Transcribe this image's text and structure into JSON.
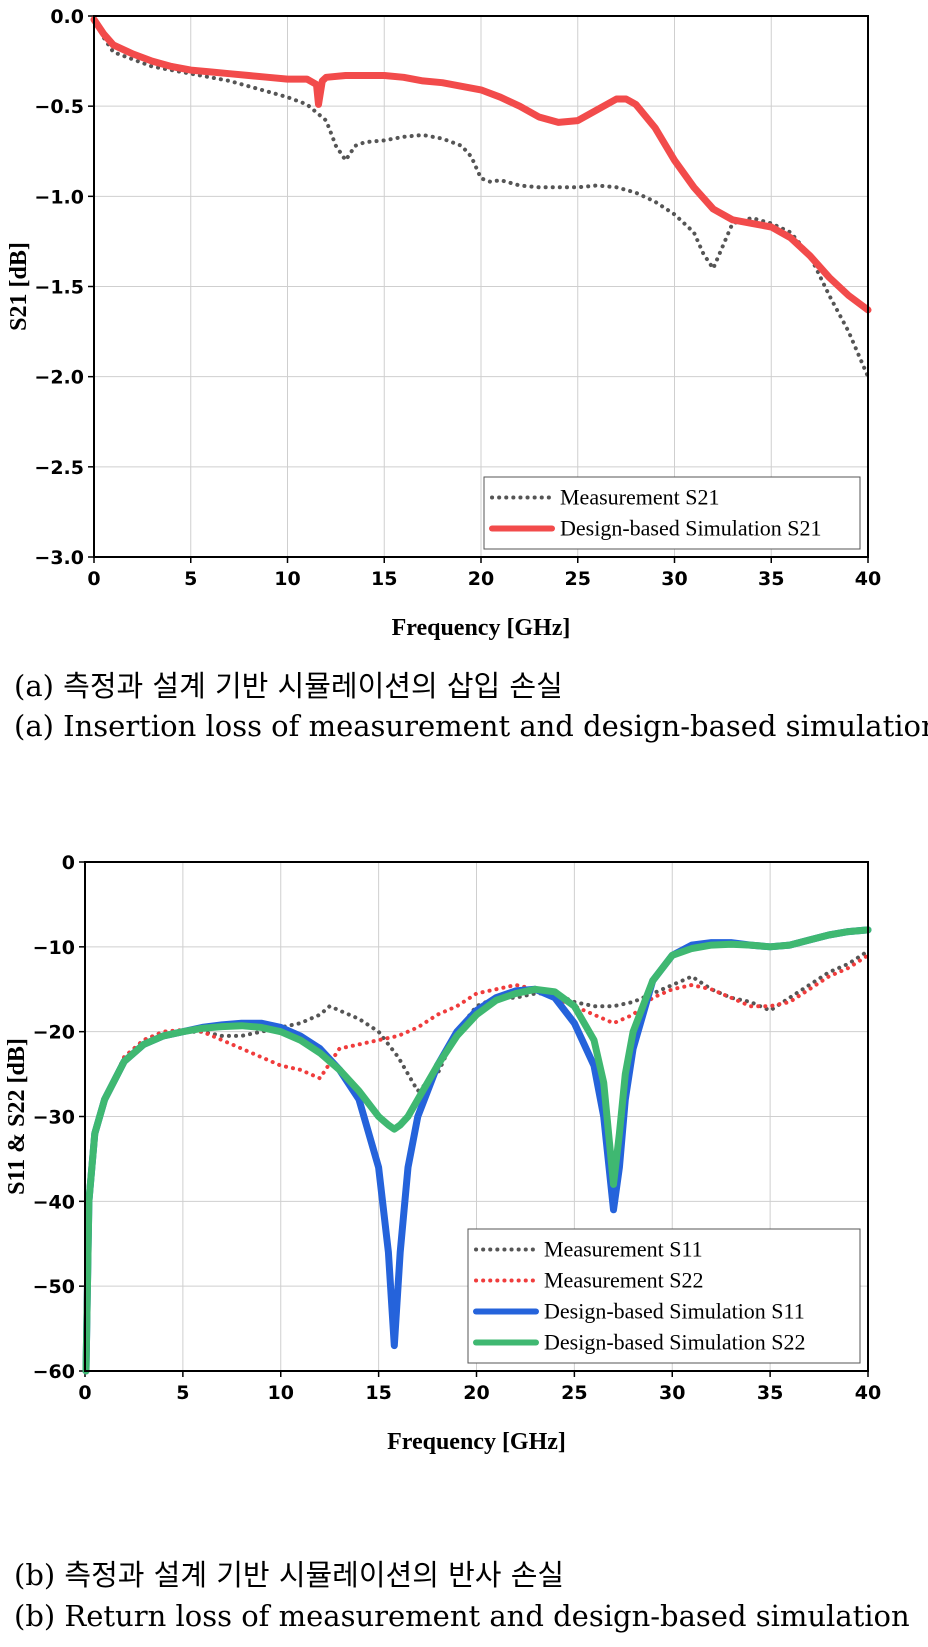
{
  "figure_a": {
    "caption_ko": "(a) 측정과 설계 기반 시뮬레이션의 삽입 손실",
    "caption_en": "(a) Insertion loss of measurement and design-based simulation"
  },
  "figure_b": {
    "caption_ko": "(b) 측정과 설계 기반 시뮬레이션의 반사 손실",
    "caption_en": "(b) Return loss of measurement and design-based simulation"
  },
  "chart_data": [
    {
      "type": "line",
      "xlabel": "Frequency [GHz]",
      "ylabel": "S21 [dB]",
      "xlim": [
        0,
        40
      ],
      "ylim": [
        -3.0,
        0.0
      ],
      "xticks": [
        0,
        5,
        10,
        15,
        20,
        25,
        30,
        35,
        40
      ],
      "yticks": [
        "0.0",
        "-0.5",
        "-1.0",
        "-1.5",
        "-2.0",
        "-2.5",
        "-3.0"
      ],
      "grid": true,
      "legend_position": "bottom-right",
      "series": [
        {
          "name": "Measurement S21",
          "style": "dotted",
          "color": "#555555",
          "x": [
            0,
            0.5,
            1,
            2,
            3,
            4,
            5,
            6,
            7,
            8,
            9,
            10,
            11,
            12,
            12.5,
            13,
            13.5,
            14,
            15,
            16,
            17,
            18,
            19,
            19.5,
            20,
            20.5,
            21,
            22,
            23,
            24,
            25,
            26,
            27,
            28,
            29,
            30,
            31,
            31.5,
            32,
            33,
            34,
            35,
            36,
            37,
            38,
            39,
            40
          ],
          "y": [
            -0.02,
            -0.12,
            -0.2,
            -0.24,
            -0.28,
            -0.3,
            -0.32,
            -0.34,
            -0.36,
            -0.39,
            -0.42,
            -0.45,
            -0.49,
            -0.58,
            -0.72,
            -0.8,
            -0.72,
            -0.7,
            -0.69,
            -0.67,
            -0.66,
            -0.68,
            -0.72,
            -0.78,
            -0.9,
            -0.92,
            -0.91,
            -0.94,
            -0.95,
            -0.95,
            -0.95,
            -0.94,
            -0.95,
            -0.98,
            -1.03,
            -1.1,
            -1.2,
            -1.32,
            -1.4,
            -1.15,
            -1.12,
            -1.15,
            -1.2,
            -1.33,
            -1.55,
            -1.75,
            -2.0
          ]
        },
        {
          "name": "Design-based Simulation S21",
          "style": "solid",
          "color": "#f24b4b",
          "x": [
            0,
            0.5,
            1,
            2,
            3,
            4,
            5,
            6,
            7,
            8,
            9,
            10,
            11,
            11.5,
            11.6,
            11.8,
            12,
            13,
            14,
            15,
            16,
            17,
            18,
            19,
            20,
            21,
            22,
            23,
            24,
            25,
            26,
            27,
            27.5,
            28,
            29,
            30,
            31,
            32,
            33,
            34,
            35,
            36,
            37,
            38,
            39,
            40
          ],
          "y": [
            -0.02,
            -0.1,
            -0.16,
            -0.21,
            -0.25,
            -0.28,
            -0.3,
            -0.31,
            -0.32,
            -0.33,
            -0.34,
            -0.35,
            -0.35,
            -0.38,
            -0.49,
            -0.36,
            -0.34,
            -0.33,
            -0.33,
            -0.33,
            -0.34,
            -0.36,
            -0.37,
            -0.39,
            -0.41,
            -0.45,
            -0.5,
            -0.56,
            -0.59,
            -0.58,
            -0.52,
            -0.46,
            -0.46,
            -0.49,
            -0.62,
            -0.8,
            -0.95,
            -1.07,
            -1.13,
            -1.15,
            -1.17,
            -1.23,
            -1.33,
            -1.45,
            -1.55,
            -1.63
          ]
        }
      ]
    },
    {
      "type": "line",
      "xlabel": "Frequency [GHz]",
      "ylabel": "S11 & S22 [dB]",
      "xlim": [
        0,
        40
      ],
      "ylim": [
        -60,
        0
      ],
      "xticks": [
        0,
        5,
        10,
        15,
        20,
        25,
        30,
        35,
        40
      ],
      "yticks": [
        "0",
        "-10",
        "-20",
        "-30",
        "-40",
        "-50",
        "-60"
      ],
      "grid": true,
      "legend_position": "bottom-right",
      "series": [
        {
          "name": "Measurement S11",
          "style": "dotted",
          "color": "#555555",
          "x": [
            0.05,
            0.2,
            0.5,
            1,
            2,
            3,
            4,
            5,
            6,
            7,
            8,
            9,
            10,
            11,
            12,
            12.5,
            13,
            14,
            15,
            16,
            17,
            18,
            19,
            20,
            21,
            22,
            23,
            24,
            25,
            26,
            27,
            28,
            29,
            30,
            31,
            32,
            33,
            34,
            35,
            36,
            37,
            38,
            39,
            40
          ],
          "y": [
            -60,
            -40,
            -32,
            -28,
            -23,
            -21,
            -20,
            -20,
            -20,
            -20.5,
            -20.5,
            -20,
            -19.5,
            -19,
            -18,
            -17,
            -17.5,
            -18.5,
            -20,
            -23,
            -27,
            -25,
            -20,
            -17,
            -16,
            -16,
            -15.5,
            -15.5,
            -16.5,
            -17,
            -17,
            -16.5,
            -15.5,
            -14.5,
            -13.5,
            -15,
            -16,
            -16.5,
            -17.5,
            -16,
            -14.5,
            -13,
            -12,
            -10.5
          ]
        },
        {
          "name": "Measurement S22",
          "style": "dotted",
          "color": "#f03c3c",
          "x": [
            0.05,
            0.2,
            0.5,
            1,
            2,
            3,
            4,
            5,
            6,
            7,
            8,
            9,
            10,
            11,
            12,
            13,
            14,
            15,
            16,
            17,
            18,
            19,
            20,
            21,
            22,
            23,
            24,
            25,
            26,
            27,
            28,
            29,
            30,
            31,
            32,
            33,
            34,
            35,
            36,
            37,
            38,
            39,
            40
          ],
          "y": [
            -60,
            -40,
            -32,
            -28,
            -23,
            -21,
            -20,
            -19.8,
            -20,
            -21,
            -22,
            -23,
            -24,
            -24.5,
            -25.5,
            -22,
            -21.5,
            -21,
            -20.5,
            -19.5,
            -18,
            -17,
            -15.5,
            -15,
            -14.5,
            -15,
            -16,
            -17,
            -18,
            -19,
            -18,
            -16,
            -15,
            -14.5,
            -15,
            -16,
            -17,
            -17,
            -16.5,
            -15,
            -13.5,
            -12.5,
            -11
          ]
        },
        {
          "name": "Design-based Simulation S11",
          "style": "solid",
          "color": "#2563db",
          "x": [
            0.05,
            0.2,
            0.5,
            1,
            2,
            3,
            4,
            5,
            6,
            7,
            8,
            9,
            10,
            11,
            12,
            13,
            14,
            15,
            15.5,
            15.8,
            16.1,
            16.5,
            17,
            18,
            19,
            20,
            21,
            22,
            23,
            24,
            25,
            26,
            26.5,
            27,
            27.3,
            27.6,
            28,
            29,
            30,
            31,
            32,
            33,
            34,
            35,
            36,
            37,
            38,
            39,
            40
          ],
          "y": [
            -60,
            -40,
            -32,
            -28,
            -23.5,
            -21.5,
            -20.5,
            -20,
            -19.5,
            -19.2,
            -19,
            -19,
            -19.5,
            -20.5,
            -22,
            -24.5,
            -28,
            -36,
            -46,
            -57,
            -46,
            -36,
            -30,
            -24,
            -20,
            -17.5,
            -16,
            -15.2,
            -15,
            -16,
            -19,
            -24,
            -30,
            -41,
            -36,
            -28,
            -22,
            -14,
            -11,
            -9.8,
            -9.5,
            -9.5,
            -9.8,
            -10,
            -9.8,
            -9.2,
            -8.6,
            -8.2,
            -8
          ]
        },
        {
          "name": "Design-based Simulation S22",
          "style": "solid",
          "color": "#3fb871",
          "x": [
            0.05,
            0.2,
            0.5,
            1,
            2,
            3,
            4,
            5,
            6,
            7,
            8,
            9,
            10,
            11,
            12,
            13,
            14,
            15,
            15.5,
            15.8,
            16.1,
            16.5,
            17,
            18,
            19,
            20,
            21,
            22,
            23,
            24,
            25,
            26,
            26.5,
            27,
            27.3,
            27.6,
            28,
            29,
            30,
            31,
            32,
            33,
            34,
            35,
            36,
            37,
            38,
            39,
            40
          ],
          "y": [
            -60,
            -40,
            -32,
            -28,
            -23.5,
            -21.5,
            -20.5,
            -20,
            -19.6,
            -19.4,
            -19.3,
            -19.5,
            -20,
            -21,
            -22.5,
            -24.5,
            -27,
            -30,
            -31,
            -31.5,
            -31,
            -30,
            -28,
            -24,
            -20.5,
            -18,
            -16.3,
            -15.5,
            -15,
            -15.3,
            -17,
            -21,
            -26,
            -38,
            -32,
            -25,
            -20,
            -14,
            -11,
            -10.2,
            -9.8,
            -9.7,
            -9.8,
            -10,
            -9.8,
            -9.2,
            -8.6,
            -8.2,
            -8
          ]
        }
      ]
    }
  ]
}
